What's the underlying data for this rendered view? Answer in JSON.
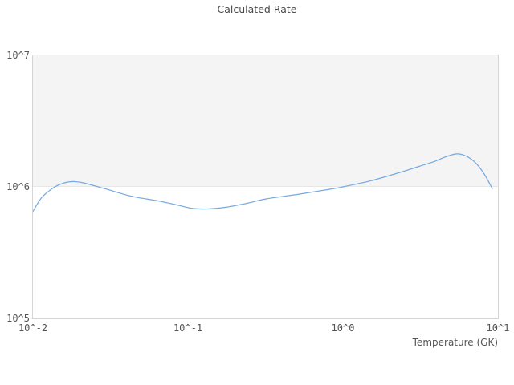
{
  "chart_data": {
    "type": "line",
    "title": "Calculated Rate",
    "xlabel": "Temperature (GK)",
    "ylabel": "",
    "xscale": "log",
    "yscale": "log",
    "xlim": [
      0.01,
      10
    ],
    "ylim": [
      100000,
      10000000
    ],
    "xtick_labels": [
      "10^-2",
      "10^-1",
      "10^0",
      "10^1"
    ],
    "xtick_values": [
      0.01,
      0.1,
      1,
      10
    ],
    "ytick_labels": [
      "10^5",
      "10^6",
      "10^7"
    ],
    "ytick_values": [
      100000,
      1000000,
      10000000
    ],
    "legend": "none",
    "grid": "shaded band between 10^6 and 10^7",
    "line_color": "#74a8e0",
    "band_color": "#f4f4f4",
    "series": [
      {
        "name": "calculated-rate",
        "x": [
          0.01,
          0.0113,
          0.0127,
          0.0143,
          0.017,
          0.0205,
          0.029,
          0.043,
          0.065,
          0.089,
          0.107,
          0.135,
          0.176,
          0.24,
          0.32,
          0.52,
          0.83,
          1.0,
          1.5,
          2.2,
          3.1,
          3.9,
          4.6,
          5.4,
          6.2,
          7.1,
          8.1,
          9.2
        ],
        "y": [
          650000,
          820000,
          930000,
          1020000,
          1090000,
          1080000,
          970000,
          850000,
          780000,
          720000,
          685000,
          680000,
          700000,
          750000,
          810000,
          880000,
          960000,
          1000000,
          1110000,
          1260000,
          1430000,
          1560000,
          1690000,
          1780000,
          1720000,
          1540000,
          1270000,
          970000
        ]
      }
    ]
  }
}
